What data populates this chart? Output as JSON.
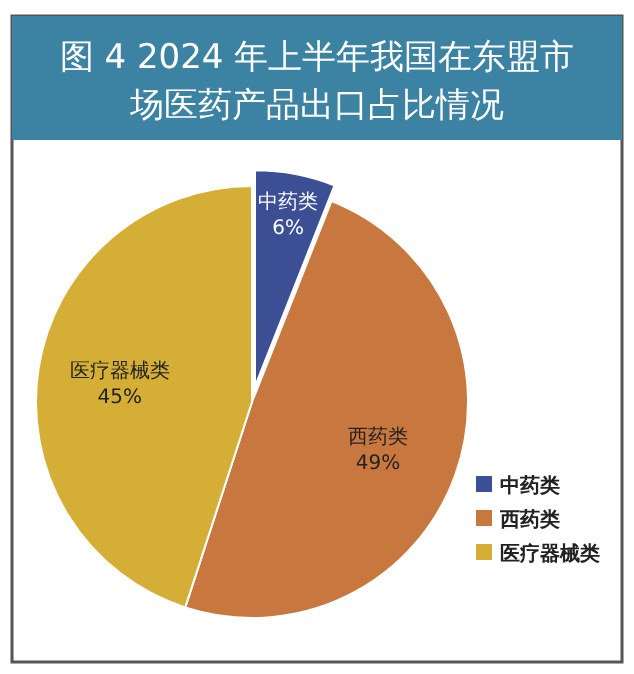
{
  "chart_data": {
    "type": "pie",
    "title": "图 4 2024 年上半年我国在东盟市场医药产品出口占比情况",
    "categories": [
      "中药类",
      "西药类",
      "医疗器械类"
    ],
    "values": [
      6,
      49,
      45
    ],
    "colors": [
      "#3c4f95",
      "#c8783f",
      "#d4ae35"
    ],
    "value_labels": [
      "6%",
      "49%",
      "45%"
    ],
    "legend": "bottom right"
  }
}
